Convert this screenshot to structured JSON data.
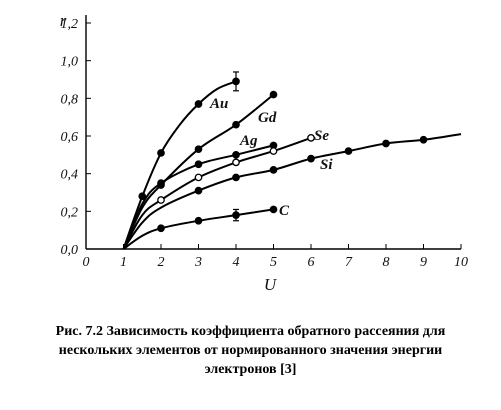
{
  "chart_data": {
    "type": "line",
    "xlabel": "U",
    "ylabel": "r",
    "xlim": [
      0,
      10
    ],
    "ylim": [
      0,
      1.2
    ],
    "x_ticks": [
      "0",
      "1",
      "2",
      "3",
      "4",
      "5",
      "6",
      "7",
      "8",
      "9",
      "10"
    ],
    "y_ticks": [
      "0,0",
      "0,2",
      "0,4",
      "0,6",
      "0,8",
      "1,0",
      "1,2"
    ],
    "grid": false,
    "series": [
      {
        "name": "Au",
        "filled": true,
        "points": [
          [
            1.5,
            0.28
          ],
          [
            2,
            0.51
          ],
          [
            3,
            0.77
          ],
          [
            4,
            0.89
          ]
        ],
        "curve": [
          [
            1.0,
            0.0
          ],
          [
            1.5,
            0.28
          ],
          [
            2,
            0.51
          ],
          [
            2.5,
            0.66
          ],
          [
            3,
            0.77
          ],
          [
            3.5,
            0.85
          ],
          [
            4,
            0.89
          ]
        ],
        "error_bar": {
          "x": 4,
          "low": 0.84,
          "high": 0.94
        }
      },
      {
        "name": "Gd",
        "filled": true,
        "points": [
          [
            2,
            0.34
          ],
          [
            3,
            0.53
          ],
          [
            4,
            0.66
          ],
          [
            5,
            0.82
          ]
        ],
        "curve": [
          [
            1.0,
            0.0
          ],
          [
            1.5,
            0.22
          ],
          [
            2,
            0.34
          ],
          [
            3,
            0.53
          ],
          [
            4,
            0.66
          ],
          [
            5,
            0.82
          ]
        ]
      },
      {
        "name": "Ag",
        "filled": true,
        "points": [
          [
            2,
            0.35
          ],
          [
            3,
            0.45
          ],
          [
            4,
            0.5
          ],
          [
            5,
            0.55
          ]
        ],
        "curve": [
          [
            1.0,
            0.0
          ],
          [
            1.5,
            0.24
          ],
          [
            2,
            0.35
          ],
          [
            3,
            0.45
          ],
          [
            4,
            0.5
          ],
          [
            5,
            0.55
          ]
        ]
      },
      {
        "name": "Se",
        "filled": false,
        "points": [
          [
            2,
            0.26
          ],
          [
            3,
            0.38
          ],
          [
            4,
            0.46
          ],
          [
            5,
            0.52
          ],
          [
            6,
            0.59
          ]
        ],
        "curve": [
          [
            1.0,
            0.0
          ],
          [
            1.5,
            0.18
          ],
          [
            2,
            0.26
          ],
          [
            3,
            0.38
          ],
          [
            4,
            0.46
          ],
          [
            5,
            0.52
          ],
          [
            6,
            0.59
          ]
        ]
      },
      {
        "name": "Si",
        "filled": true,
        "points": [
          [
            3,
            0.31
          ],
          [
            4,
            0.38
          ],
          [
            5,
            0.42
          ],
          [
            6,
            0.48
          ],
          [
            7,
            0.52
          ],
          [
            8,
            0.56
          ],
          [
            9,
            0.58
          ]
        ],
        "curve": [
          [
            1.0,
            0.0
          ],
          [
            1.5,
            0.14
          ],
          [
            2,
            0.22
          ],
          [
            3,
            0.31
          ],
          [
            4,
            0.38
          ],
          [
            5,
            0.42
          ],
          [
            6,
            0.48
          ],
          [
            7,
            0.52
          ],
          [
            8,
            0.56
          ],
          [
            9,
            0.58
          ],
          [
            10,
            0.61
          ]
        ]
      },
      {
        "name": "C",
        "filled": true,
        "points": [
          [
            2,
            0.11
          ],
          [
            3,
            0.15
          ],
          [
            4,
            0.18
          ],
          [
            5,
            0.21
          ]
        ],
        "curve": [
          [
            1.0,
            0.0
          ],
          [
            1.5,
            0.07
          ],
          [
            2,
            0.11
          ],
          [
            3,
            0.15
          ],
          [
            4,
            0.18
          ],
          [
            5,
            0.21
          ]
        ],
        "error_bar": {
          "x": 4,
          "low": 0.15,
          "high": 0.21
        }
      }
    ]
  },
  "caption": {
    "line1": "Рис. 7.2 Зависимость коэффициента обратного рассеяния для",
    "line2": "нескольких элементов от нормированного значения энергии",
    "line3": "электронов [3]"
  }
}
